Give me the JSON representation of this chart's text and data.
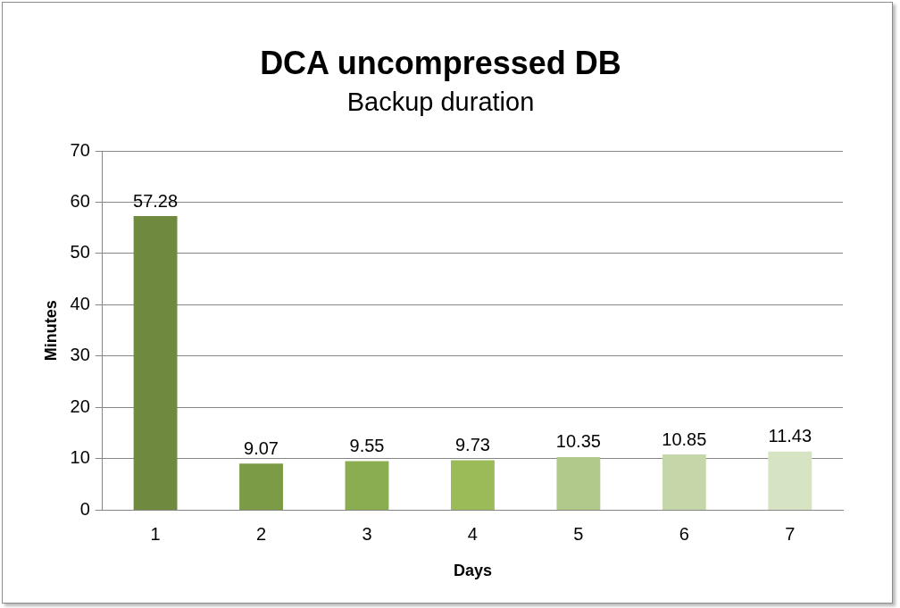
{
  "chart_data": {
    "type": "bar",
    "title": "DCA uncompressed DB",
    "subtitle": "Backup duration",
    "xlabel": "Days",
    "ylabel": "Minutes",
    "categories": [
      "1",
      "2",
      "3",
      "4",
      "5",
      "6",
      "7"
    ],
    "values": [
      57.28,
      9.07,
      9.55,
      9.73,
      10.35,
      10.85,
      11.43
    ],
    "colors": [
      "#6f8a3e",
      "#7b9b46",
      "#8aad4f",
      "#9bbb59",
      "#b1c98b",
      "#c5d7a8",
      "#d7e4c4"
    ],
    "ylim": [
      0,
      70
    ],
    "yticks": [
      0,
      10,
      20,
      30,
      40,
      50,
      60,
      70
    ],
    "grid": "y",
    "data_labels": true
  }
}
